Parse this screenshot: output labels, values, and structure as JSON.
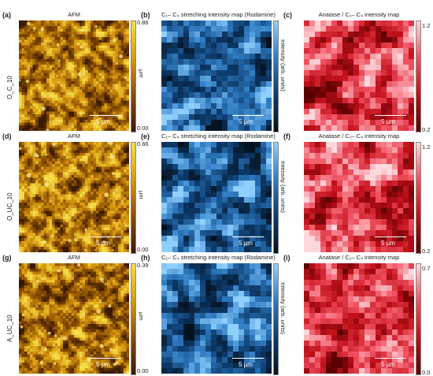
{
  "rows": [
    {
      "sample": "O_C_10",
      "labels": [
        "(a)",
        "(b)",
        "(c)"
      ],
      "titles": [
        "AFM",
        "C₁– C₄ stretching intensity map (Rodamine)",
        "Anatase / C₁– C₄ intensity map"
      ],
      "afm_range": [
        "0.86",
        "0.00"
      ],
      "afm_unit": "µm",
      "int_unit": "Intensity (arb. units)",
      "ratio_range": [
        "1.2",
        "0.2"
      ],
      "scale": [
        "5 µm",
        "5 µm",
        "5 µm"
      ]
    },
    {
      "sample": "O_UC_10",
      "labels": [
        "(d)",
        "(e)",
        "(f)"
      ],
      "titles": [
        "AFM",
        "C₁– C₄ stretching intensity map (Rodamine)",
        "Anatase / C₁– C₄ intensity map"
      ],
      "afm_range": [
        "0.66",
        "0.00"
      ],
      "afm_unit": "µm",
      "int_unit": "Intensity (arb. units)",
      "ratio_range": [
        "1.2",
        "0.2"
      ],
      "scale": [
        "5 µm",
        "5 µm",
        "5 µm"
      ]
    },
    {
      "sample": "A_UC_10",
      "labels": [
        "(g)",
        "(h)",
        "(i)"
      ],
      "titles": [
        "AFM",
        "C₁– C₄ stretching intensity map (Rodamine)",
        "Anatase / C₁– C₄ intensity map"
      ],
      "afm_range": [
        "0.39",
        "0.00"
      ],
      "afm_unit": "µm",
      "int_unit": "Intensity (arb. units)",
      "ratio_range": [
        "0.7",
        "0.0"
      ],
      "scale": [
        "5 µm",
        "5 µm",
        "5 µm"
      ]
    }
  ],
  "colors": {
    "afm": [
      "#3a1a00",
      "#8a4e00",
      "#d99a10",
      "#f5dd4a"
    ],
    "intensity": [
      "#05121f",
      "#0d3a6a",
      "#2f7bc1",
      "#8fd0ff"
    ],
    "ratio": [
      "#5a0000",
      "#c0101a",
      "#f05060",
      "#ffd8dc"
    ]
  }
}
